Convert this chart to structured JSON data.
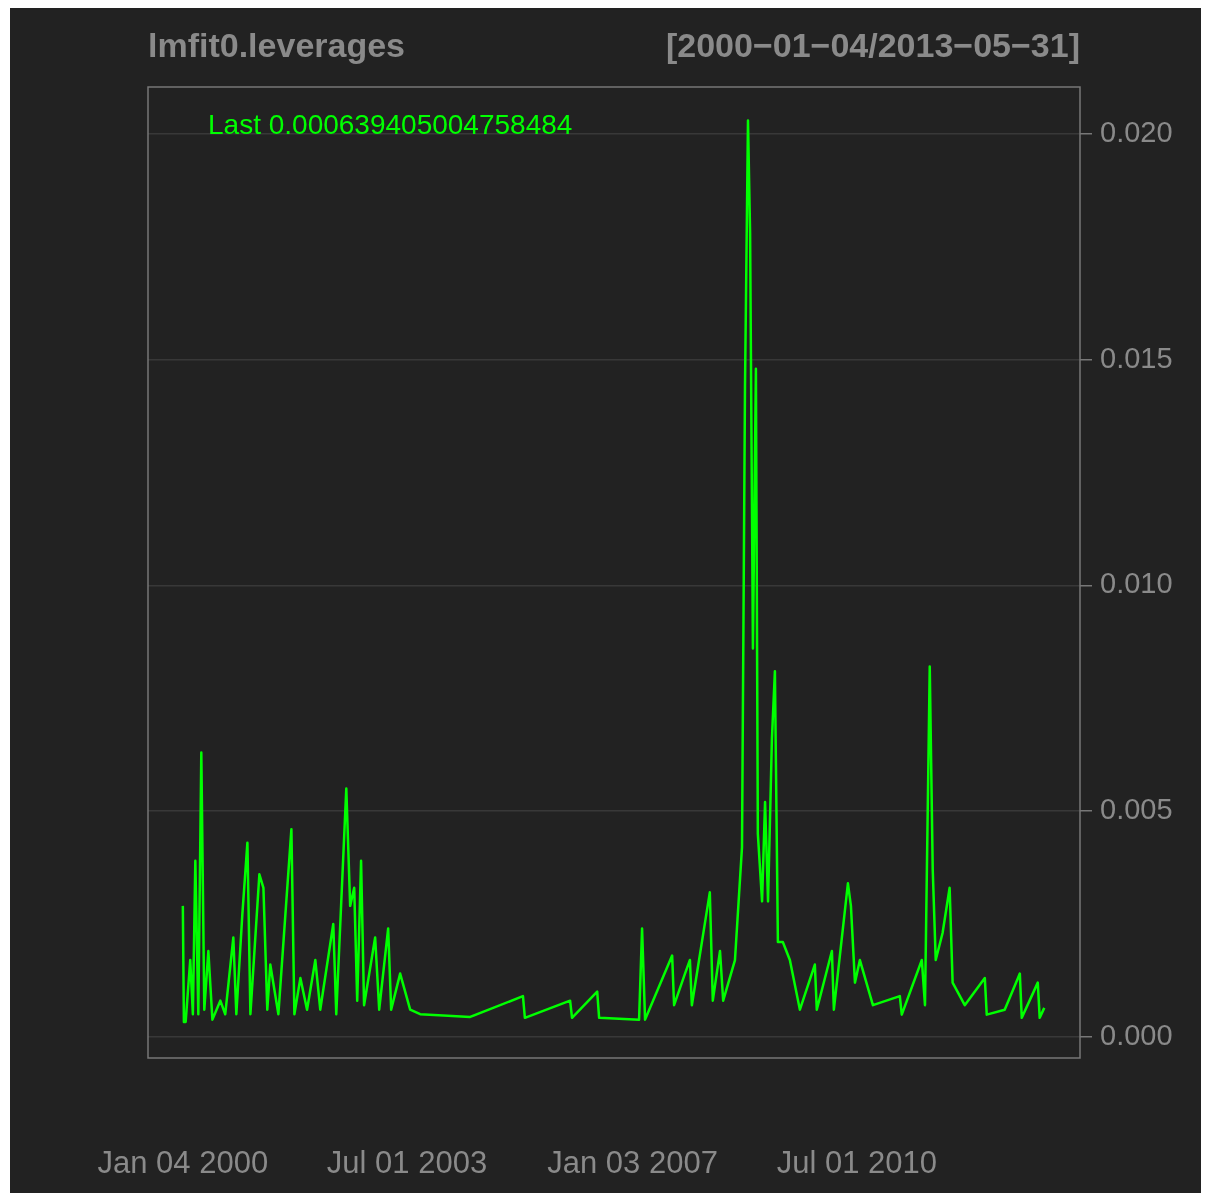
{
  "chart_data": {
    "type": "line",
    "title": "lmfit0.leverages",
    "subtitle": "[2000−01−04/2013−05−31]",
    "annotations": [
      "Last 0.000639405004758484"
    ],
    "x": [
      "2000-01-04",
      "2000-01-10",
      "2000-01-20",
      "2000-02-15",
      "2000-03-01",
      "2000-03-15",
      "2000-04-01",
      "2000-04-18",
      "2000-05-05",
      "2000-05-28",
      "2000-06-20",
      "2000-08-04",
      "2000-09-01",
      "2000-10-17",
      "2000-11-03",
      "2000-12-07",
      "2001-01-05",
      "2001-01-22",
      "2001-03-14",
      "2001-04-06",
      "2001-04-28",
      "2001-05-15",
      "2001-06-30",
      "2001-09-12",
      "2001-09-29",
      "2001-11-02",
      "2001-12-10",
      "2002-01-26",
      "2002-02-23",
      "2002-05-08",
      "2002-05-25",
      "2002-07-21",
      "2002-08-12",
      "2002-09-04",
      "2002-09-21",
      "2002-10-13",
      "2002-10-30",
      "2003-01-01",
      "2003-01-24",
      "2003-03-16",
      "2003-04-02",
      "2003-05-23",
      "2003-07-19",
      "2003-09-14",
      "2004-06-24",
      "2005-04-20",
      "2005-05-01",
      "2006-01-13",
      "2006-01-24",
      "2006-06-16",
      "2006-06-27",
      "2007-02-09",
      "2007-02-26",
      "2007-03-15",
      "2007-08-16",
      "2007-08-27",
      "2007-10-28",
      "2007-11-25",
      "2007-12-06",
      "2008-03-17",
      "2008-04-03",
      "2008-05-14",
      "2008-06-01",
      "2008-08-07",
      "2008-09-16",
      "2008-10-03",
      "2008-10-20",
      "2008-11-01",
      "2008-11-17",
      "2008-12-04",
      "2008-12-15",
      "2009-01-08",
      "2009-01-25",
      "2009-02-11",
      "2009-03-05",
      "2009-03-22",
      "2009-04-08",
      "2009-05-06",
      "2009-06-15",
      "2009-08-11",
      "2009-11-04",
      "2009-11-15",
      "2010-02-09",
      "2010-02-20",
      "2010-05-11",
      "2010-05-28",
      "2010-06-20",
      "2010-07-18",
      "2010-09-30",
      "2011-03-02",
      "2011-03-13",
      "2011-07-05",
      "2011-07-23",
      "2011-08-19",
      "2011-09-05",
      "2011-09-22",
      "2011-10-31",
      "2011-12-10",
      "2011-12-27",
      "2012-03-05",
      "2012-06-27",
      "2012-07-08",
      "2012-10-18",
      "2013-01-12",
      "2013-01-23",
      "2013-04-24",
      "2013-05-05",
      "2013-05-31"
    ],
    "series": [
      {
        "color": "#00ff00",
        "values": [
          0.0029,
          0.00033,
          0.00033,
          0.0017,
          0.0005,
          0.0039,
          0.0005,
          0.0063,
          0.0006,
          0.0019,
          0.00038,
          0.0008,
          0.0005,
          0.0022,
          0.0005,
          0.0027,
          0.0043,
          0.0005,
          0.0036,
          0.0033,
          0.0006,
          0.0016,
          0.0005,
          0.0046,
          0.0005,
          0.0013,
          0.0006,
          0.0017,
          0.0006,
          0.0025,
          0.0005,
          0.0055,
          0.0029,
          0.0033,
          0.0008,
          0.0039,
          0.0007,
          0.0022,
          0.0006,
          0.0024,
          0.0006,
          0.0014,
          0.0006,
          0.0005,
          0.00044,
          0.0009,
          0.00042,
          0.0008,
          0.00042,
          0.001,
          0.00042,
          0.00038,
          0.0024,
          0.00038,
          0.0018,
          0.0007,
          0.0014,
          0.0017,
          0.0007,
          0.0032,
          0.0008,
          0.0019,
          0.0008,
          0.0017,
          0.0042,
          0.0144,
          0.0203,
          0.0178,
          0.0086,
          0.0148,
          0.0045,
          0.003,
          0.0052,
          0.003,
          0.0066,
          0.0081,
          0.0021,
          0.0021,
          0.0017,
          0.0006,
          0.0016,
          0.0006,
          0.0019,
          0.0006,
          0.0034,
          0.0029,
          0.0012,
          0.0017,
          0.0007,
          0.0009,
          0.00049,
          0.0017,
          0.0007,
          0.0082,
          0.0037,
          0.0017,
          0.0023,
          0.0033,
          0.0012,
          0.0007,
          0.0013,
          0.00049,
          0.0006,
          0.0014,
          0.00042,
          0.0012,
          0.00042,
          0.00064
        ]
      }
    ],
    "xlim": [
      "1999-06-20",
      "2013-12-20"
    ],
    "xticks": [
      {
        "value": "2000-01-04",
        "label": "Jan 04 2000"
      },
      {
        "value": "2003-07-01",
        "label": "Jul 01 2003"
      },
      {
        "value": "2007-01-03",
        "label": "Jan 03 2007"
      },
      {
        "value": "2010-07-01",
        "label": "Jul 01 2010"
      }
    ],
    "ylim": [
      -0.00047,
      0.02104
    ],
    "yticks": [
      {
        "value": 0,
        "label": "0.000"
      },
      {
        "value": 0.005,
        "label": "0.005"
      },
      {
        "value": 0.01,
        "label": "0.010"
      },
      {
        "value": 0.015,
        "label": "0.015"
      },
      {
        "value": 0.02,
        "label": "0.020"
      }
    ],
    "grid": "y",
    "legend": false
  }
}
